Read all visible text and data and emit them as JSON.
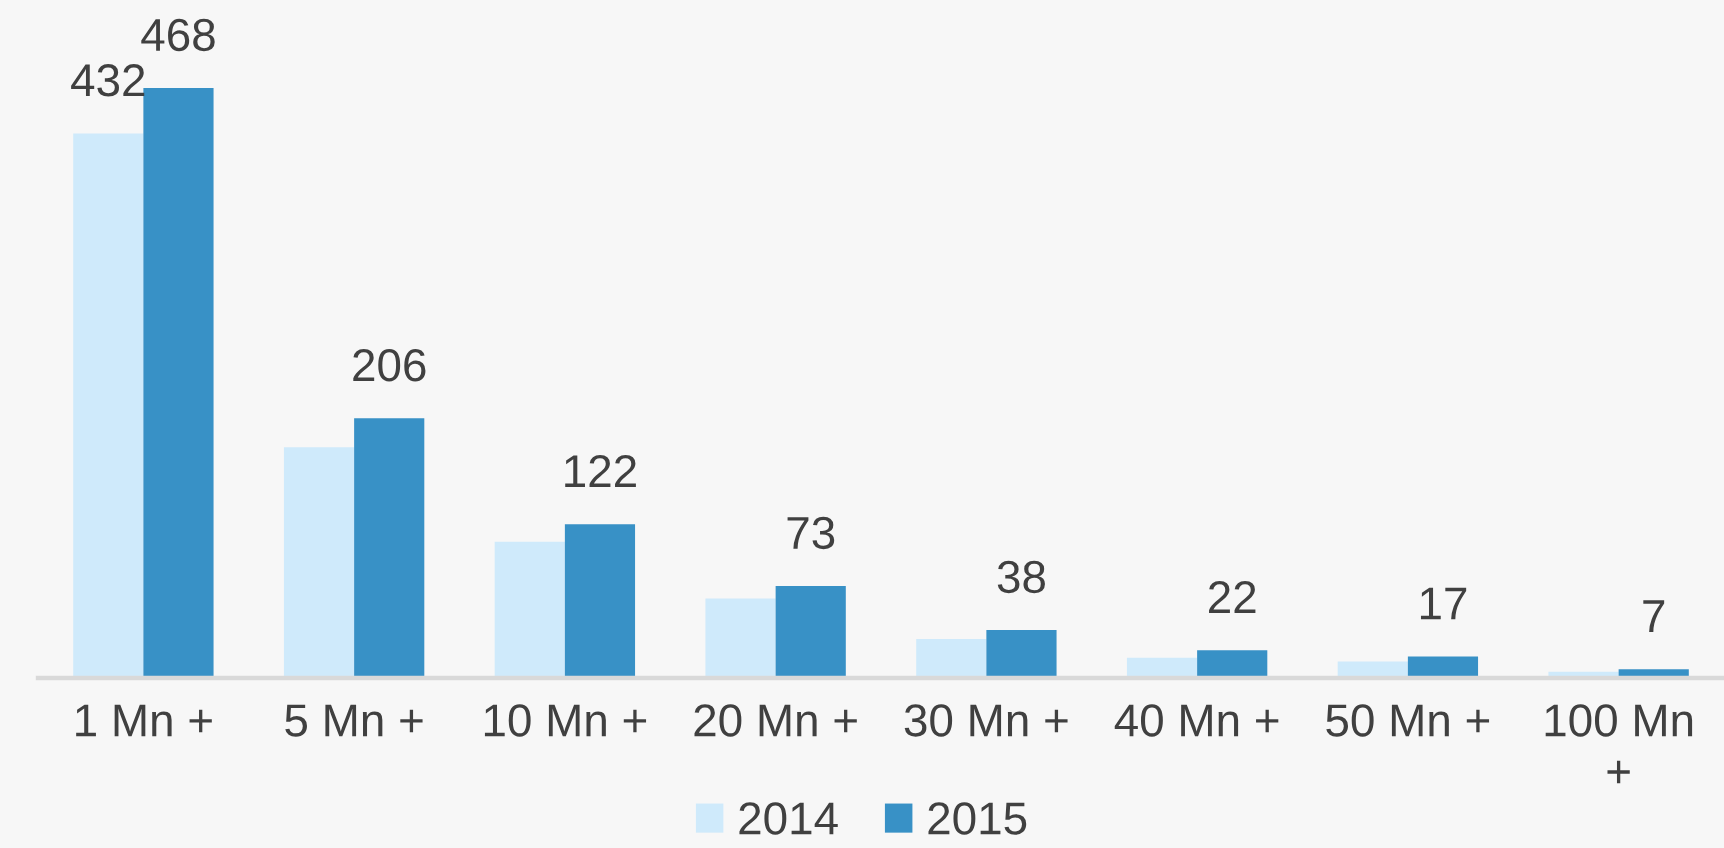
{
  "chart_data": {
    "type": "bar",
    "categories": [
      "1 Mn +",
      "5 Mn +",
      "10 Mn +",
      "20 Mn +",
      "30 Mn +",
      "40 Mn +",
      "50 Mn +",
      "100 Mn +"
    ],
    "series": [
      {
        "name": "2014",
        "color": "#cfeafb",
        "values": [
          432,
          183,
          108,
          63,
          31,
          16,
          13,
          5
        ],
        "value_labels": [
          "432",
          null,
          null,
          null,
          null,
          null,
          null,
          null
        ]
      },
      {
        "name": "2015",
        "color": "#3891c6",
        "values": [
          468,
          206,
          122,
          73,
          38,
          22,
          17,
          7
        ],
        "value_labels": [
          "468",
          "206",
          "122",
          "73",
          "38",
          "22",
          "17",
          "7"
        ]
      }
    ],
    "legend": "bottom",
    "grid": false
  }
}
